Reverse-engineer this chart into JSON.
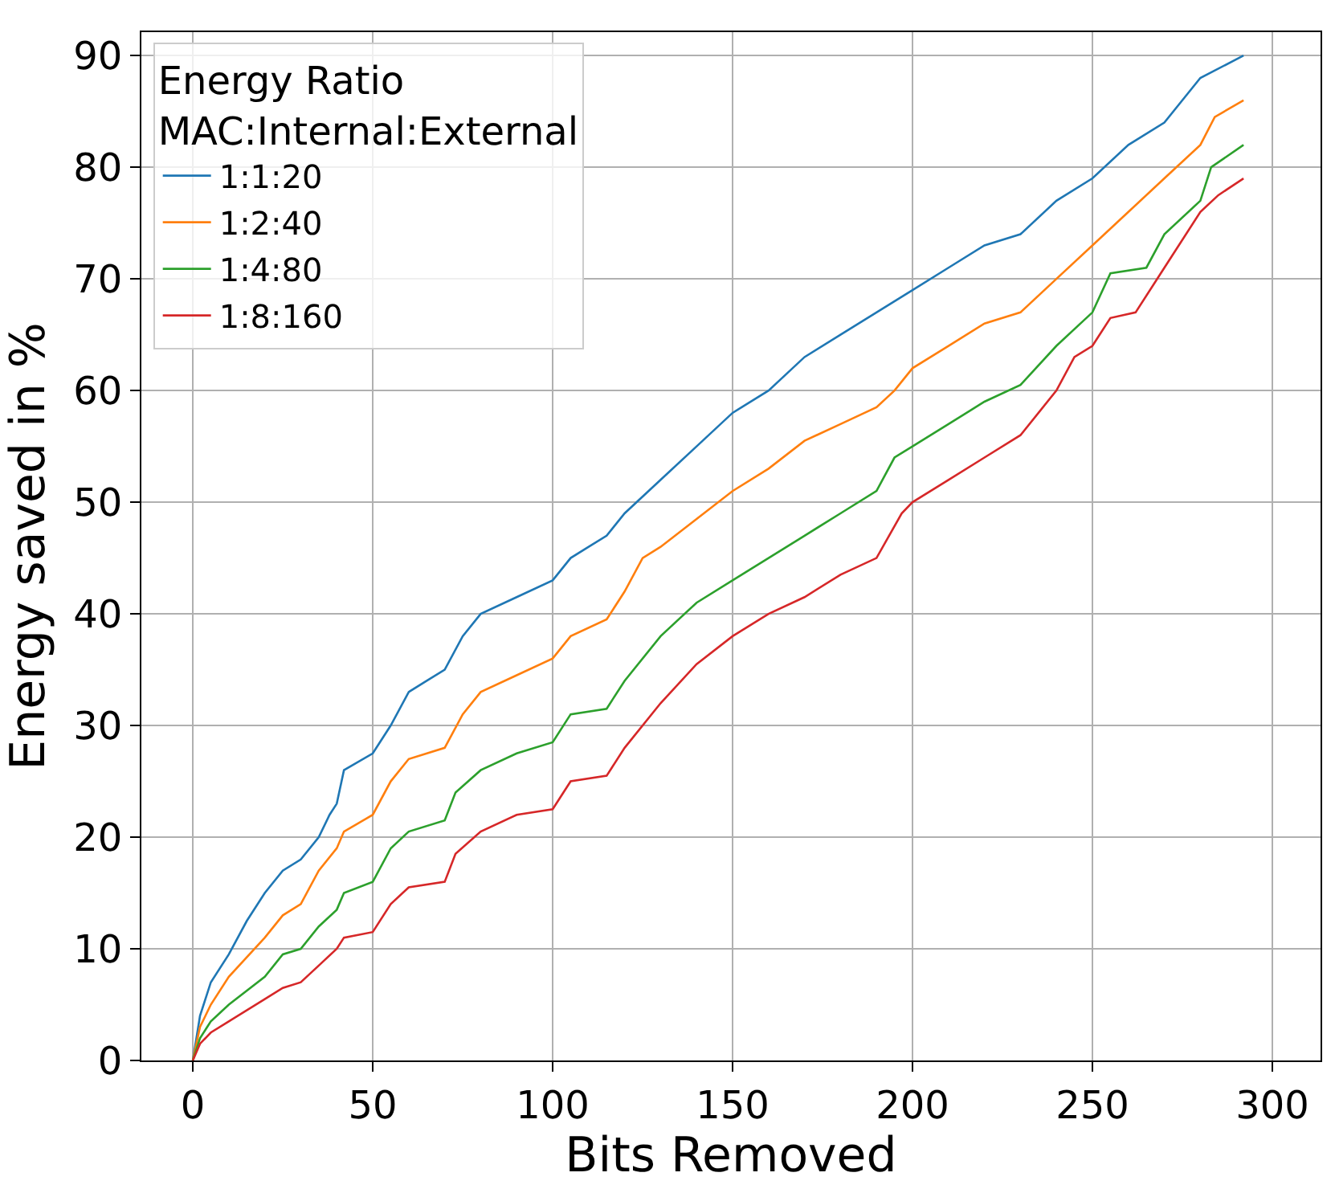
{
  "chart_data": {
    "type": "line",
    "xlabel": "Bits Removed",
    "ylabel": "Energy saved in %",
    "legend_title": "Energy Ratio\nMAC:Internal:External",
    "legend": "top left",
    "grid": true,
    "line_style": "solid",
    "marker": "none",
    "xlim": [
      -14.3,
      313.4
    ],
    "ylim": [
      0,
      92.1
    ],
    "xticks": [
      0,
      50,
      100,
      150,
      200,
      250,
      300
    ],
    "yticks": [
      0,
      10,
      20,
      30,
      40,
      50,
      60,
      70,
      80,
      90
    ],
    "series": [
      {
        "name": "1:1:20",
        "color": "#1f77b4",
        "x": [
          0,
          2,
          5,
          10,
          15,
          20,
          25,
          30,
          35,
          38,
          40,
          42,
          50,
          55,
          60,
          65,
          70,
          75,
          80,
          90,
          100,
          105,
          110,
          115,
          120,
          130,
          140,
          150,
          160,
          170,
          180,
          190,
          200,
          210,
          220,
          230,
          240,
          250,
          260,
          270,
          275,
          280,
          292
        ],
        "values": [
          0,
          4,
          7,
          9.5,
          12.5,
          15,
          17,
          18,
          20,
          22,
          23,
          26,
          27.5,
          30,
          33,
          34,
          35,
          38,
          40,
          41.5,
          43,
          45,
          46,
          47,
          49,
          52,
          55,
          58,
          60,
          63,
          65,
          67,
          69,
          71,
          73,
          74,
          77,
          79,
          82,
          84,
          86,
          88,
          90
        ]
      },
      {
        "name": "1:2:40",
        "color": "#ff7f0e",
        "x": [
          0,
          2,
          5,
          10,
          20,
          25,
          30,
          35,
          40,
          42,
          50,
          55,
          60,
          70,
          75,
          80,
          90,
          100,
          105,
          115,
          120,
          125,
          130,
          140,
          150,
          160,
          170,
          180,
          190,
          195,
          200,
          210,
          220,
          230,
          240,
          250,
          260,
          270,
          280,
          284,
          292
        ],
        "values": [
          0,
          3,
          5,
          7.5,
          11,
          13,
          14,
          17,
          19,
          20.5,
          22,
          25,
          27,
          28,
          31,
          33,
          34.5,
          36,
          38,
          39.5,
          42,
          45,
          46,
          48.5,
          51,
          53,
          55.5,
          57,
          58.5,
          60,
          62,
          64,
          66,
          67,
          70,
          73,
          76,
          79,
          82,
          84.5,
          86
        ]
      },
      {
        "name": "1:4:80",
        "color": "#2ca02c",
        "x": [
          0,
          2,
          5,
          10,
          20,
          25,
          30,
          35,
          40,
          42,
          50,
          55,
          60,
          70,
          73,
          80,
          90,
          100,
          105,
          115,
          120,
          130,
          140,
          150,
          160,
          170,
          180,
          190,
          195,
          200,
          210,
          220,
          230,
          240,
          250,
          255,
          265,
          270,
          280,
          283,
          292
        ],
        "values": [
          0,
          2,
          3.5,
          5,
          7.5,
          9.5,
          10,
          12,
          13.5,
          15,
          16,
          19,
          20.5,
          21.5,
          24,
          26,
          27.5,
          28.5,
          31,
          31.5,
          34,
          38,
          41,
          43,
          45,
          47,
          49,
          51,
          54,
          55,
          57,
          59,
          60.5,
          64,
          67,
          70.5,
          71,
          74,
          77,
          80,
          82
        ]
      },
      {
        "name": "1:8:160",
        "color": "#d62728",
        "x": [
          0,
          2,
          5,
          10,
          20,
          25,
          30,
          35,
          40,
          42,
          50,
          55,
          60,
          70,
          73,
          80,
          90,
          100,
          105,
          115,
          120,
          130,
          140,
          150,
          160,
          170,
          180,
          190,
          197,
          200,
          210,
          220,
          230,
          240,
          245,
          250,
          255,
          262,
          270,
          280,
          285,
          292
        ],
        "values": [
          0,
          1.5,
          2.5,
          3.5,
          5.5,
          6.5,
          7,
          8.5,
          10,
          11,
          11.5,
          14,
          15.5,
          16,
          18.5,
          20.5,
          22,
          22.5,
          25,
          25.5,
          28,
          32,
          35.5,
          38,
          40,
          41.5,
          43.5,
          45,
          49,
          50,
          52,
          54,
          56,
          60,
          63,
          64,
          66.5,
          67,
          71,
          76,
          77.5,
          79
        ]
      }
    ]
  }
}
